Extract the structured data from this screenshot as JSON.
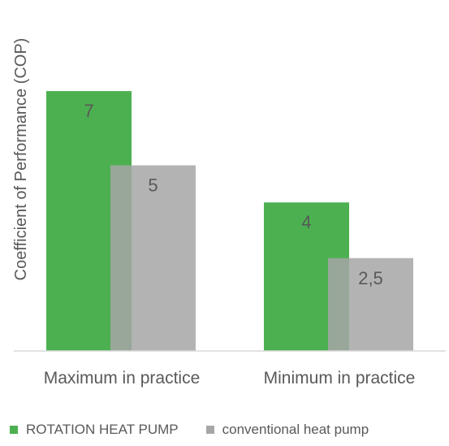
{
  "chart_data": {
    "type": "bar",
    "title": "",
    "xlabel": "",
    "ylabel": "Coefficient of Performance (COP)",
    "categories": [
      "Maximum in practice",
      "Minimum in practice"
    ],
    "series": [
      {
        "name": "ROTATION HEAT PUMP",
        "values": [
          7,
          4
        ],
        "labels": [
          "7",
          "4"
        ],
        "color": "#4cb050"
      },
      {
        "name": "conventional heat pump",
        "values": [
          5,
          2.5
        ],
        "labels": [
          "5",
          "2,5"
        ],
        "color": "#a6a6a6"
      }
    ],
    "ylim": [
      0,
      7.5
    ],
    "grid": false,
    "legend_position": "bottom-left",
    "overlap_bars": true,
    "axis_color": "#d9d9d9",
    "label_color": "#595959"
  },
  "legend": {
    "items": [
      {
        "label": "ROTATION HEAT PUMP",
        "color": "#4cb050"
      },
      {
        "label": "conventional heat pump",
        "color": "#a6a6a6"
      }
    ]
  }
}
